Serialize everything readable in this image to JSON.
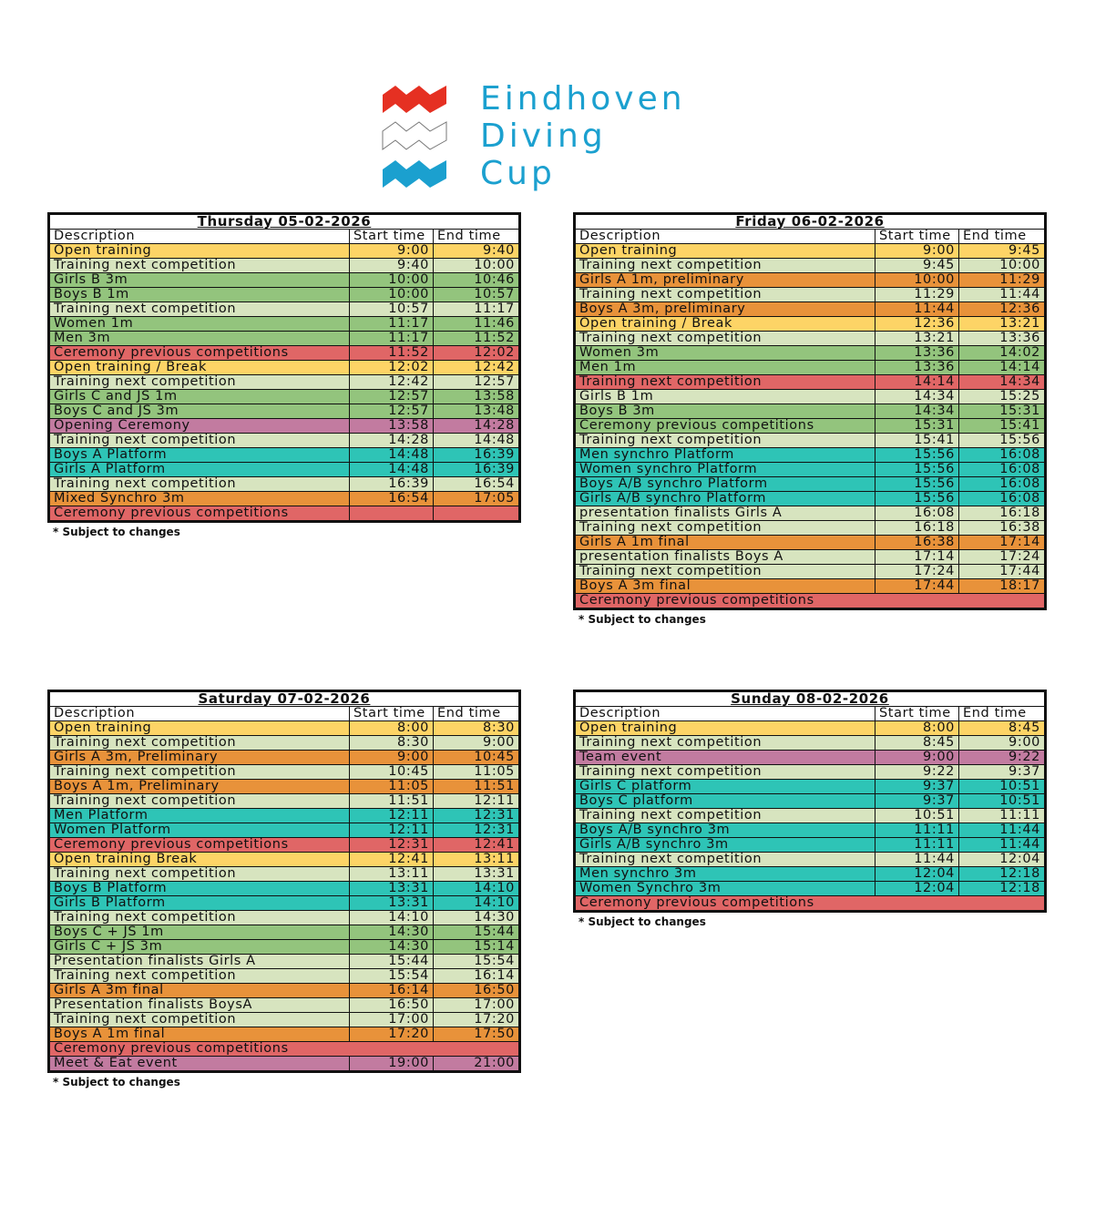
{
  "logo": {
    "lines": [
      "Eindhoven",
      "Diving",
      "Cup"
    ],
    "colors": {
      "top": "#e53022",
      "middle": "#ffffff",
      "bottom": "#1ba0cf",
      "text": "#1ba0cf"
    }
  },
  "colors": {
    "Y": "#fdd466",
    "L": "#d7e4bf",
    "G": "#93c47d",
    "R": "#e06666",
    "P": "#c27ba0",
    "T": "#2ec4b6",
    "O": "#e8923a"
  },
  "headers": {
    "description": "Description",
    "start": "Start time",
    "end": "End time"
  },
  "note": "* Subject to changes",
  "days": [
    {
      "title": "Thursday 05-02-2026",
      "rows": [
        [
          "Open training",
          "9:00",
          "9:40",
          "Y"
        ],
        [
          "Training next competition",
          "9:40",
          "10:00",
          "L"
        ],
        [
          "Girls B 3m",
          "10:00",
          "10:46",
          "G"
        ],
        [
          "Boys B 1m",
          "10:00",
          "10:57",
          "G"
        ],
        [
          "Training next competition",
          "10:57",
          "11:17",
          "L"
        ],
        [
          "Women 1m",
          "11:17",
          "11:46",
          "G"
        ],
        [
          "Men 3m",
          "11:17",
          "11:52",
          "G"
        ],
        [
          "Ceremony previous competitions",
          "11:52",
          "12:02",
          "R"
        ],
        [
          "Open training / Break",
          "12:02",
          "12:42",
          "Y"
        ],
        [
          "Training next competition",
          "12:42",
          "12:57",
          "L"
        ],
        [
          "Girls C and JS 1m",
          "12:57",
          "13:58",
          "G"
        ],
        [
          "Boys C and JS 3m",
          "12:57",
          "13:48",
          "G"
        ],
        [
          "Opening Ceremony",
          "13:58",
          "14:28",
          "P"
        ],
        [
          "Training next competition",
          "14:28",
          "14:48",
          "L"
        ],
        [
          "Boys A Platform",
          "14:48",
          "16:39",
          "T"
        ],
        [
          "Girls A Platform",
          "14:48",
          "16:39",
          "T"
        ],
        [
          "Training next competition",
          "16:39",
          "16:54",
          "L"
        ],
        [
          "Mixed Synchro 3m",
          "16:54",
          "17:05",
          "O"
        ],
        [
          "Ceremony previous competitions",
          "",
          "",
          "R"
        ]
      ]
    },
    {
      "title": "Friday 06-02-2026",
      "rows": [
        [
          "Open training",
          "9:00",
          "9:45",
          "Y"
        ],
        [
          "Training next competition",
          "9:45",
          "10:00",
          "L"
        ],
        [
          "Girls A 1m, preliminary",
          "10:00",
          "11:29",
          "O"
        ],
        [
          "Training next competition",
          "11:29",
          "11:44",
          "L"
        ],
        [
          "Boys A 3m, preliminary",
          "11:44",
          "12:36",
          "O"
        ],
        [
          "Open training / Break",
          "12:36",
          "13:21",
          "Y"
        ],
        [
          "Training next competition",
          "13:21",
          "13:36",
          "L"
        ],
        [
          "Women 3m",
          "13:36",
          "14:02",
          "G"
        ],
        [
          "Men 1m",
          "13:36",
          "14:14",
          "G"
        ],
        [
          "Training next competition",
          "14:14",
          "14:34",
          "R"
        ],
        [
          "Girls B 1m",
          "14:34",
          "15:25",
          "L"
        ],
        [
          "Boys B 3m",
          "14:34",
          "15:31",
          "G"
        ],
        [
          "Ceremony previous competitions",
          "15:31",
          "15:41",
          "G"
        ],
        [
          "Training next competition",
          "15:41",
          "15:56",
          "L"
        ],
        [
          "Men synchro Platform",
          "15:56",
          "16:08",
          "T"
        ],
        [
          "Women synchro Platform",
          "15:56",
          "16:08",
          "T"
        ],
        [
          "Boys A/B synchro Platform",
          "15:56",
          "16:08",
          "T"
        ],
        [
          "Girls A/B synchro Platform",
          "15:56",
          "16:08",
          "T"
        ],
        [
          "presentation finalists Girls A",
          "16:08",
          "16:18",
          "L"
        ],
        [
          "Training next competition",
          "16:18",
          "16:38",
          "L"
        ],
        [
          "Girls A 1m final",
          "16:38",
          "17:14",
          "O"
        ],
        [
          "presentation finalists Boys A",
          "17:14",
          "17:24",
          "L"
        ],
        [
          "Training next competition",
          "17:24",
          "17:44",
          "L"
        ],
        [
          "Boys A 3m final",
          "17:44",
          "18:17",
          "O"
        ],
        [
          "Ceremony previous competitions",
          null,
          null,
          "R"
        ]
      ]
    },
    {
      "title": "Saturday 07-02-2026",
      "rows": [
        [
          "Open training",
          "8:00",
          "8:30",
          "Y"
        ],
        [
          "Training next competition",
          "8:30",
          "9:00",
          "L"
        ],
        [
          "Girls A 3m, Preliminary",
          "9:00",
          "10:45",
          "O"
        ],
        [
          "Training next competition",
          "10:45",
          "11:05",
          "L"
        ],
        [
          "Boys A 1m, Preliminary",
          "11:05",
          "11:51",
          "O"
        ],
        [
          "Training next competition",
          "11:51",
          "12:11",
          "L"
        ],
        [
          "Men Platform",
          "12:11",
          "12:31",
          "T"
        ],
        [
          "Women Platform",
          "12:11",
          "12:31",
          "T"
        ],
        [
          "Ceremony previous competitions",
          "12:31",
          "12:41",
          "R"
        ],
        [
          "Open training Break",
          "12:41",
          "13:11",
          "Y"
        ],
        [
          "Training next competition",
          "13:11",
          "13:31",
          "L"
        ],
        [
          "Boys B Platform",
          "13:31",
          "14:10",
          "T"
        ],
        [
          "Girls B Platform",
          "13:31",
          "14:10",
          "T"
        ],
        [
          "Training next competition",
          "14:10",
          "14:30",
          "L"
        ],
        [
          "Boys C + JS 1m",
          "14:30",
          "15:44",
          "G"
        ],
        [
          "Girls C + JS 3m",
          "14:30",
          "15:14",
          "G"
        ],
        [
          "Presentation finalists Girls A",
          "15:44",
          "15:54",
          "L"
        ],
        [
          "Training next competition",
          "15:54",
          "16:14",
          "L"
        ],
        [
          "Girls A 3m final",
          "16:14",
          "16:50",
          "O"
        ],
        [
          "Presentation finalists BoysA",
          "16:50",
          "17:00",
          "L"
        ],
        [
          "Training next competition",
          "17:00",
          "17:20",
          "L"
        ],
        [
          "Boys A 1m final",
          "17:20",
          "17:50",
          "O"
        ],
        [
          "Ceremony previous competitions",
          null,
          null,
          "R"
        ],
        [
          "Meet & Eat event",
          "19:00",
          "21:00",
          "P"
        ]
      ]
    },
    {
      "title": "Sunday 08-02-2026",
      "rows": [
        [
          "Open training",
          "8:00",
          "8:45",
          "Y"
        ],
        [
          "Training next competition",
          "8:45",
          "9:00",
          "L"
        ],
        [
          "Team event",
          "9:00",
          "9:22",
          "P"
        ],
        [
          "Training next competition",
          "9:22",
          "9:37",
          "L"
        ],
        [
          "Girls C platform",
          "9:37",
          "10:51",
          "T"
        ],
        [
          "Boys C platform",
          "9:37",
          "10:51",
          "T"
        ],
        [
          "Training next competition",
          "10:51",
          "11:11",
          "L"
        ],
        [
          "Boys A/B synchro 3m",
          "11:11",
          "11:44",
          "T"
        ],
        [
          "Girls A/B synchro 3m",
          "11:11",
          "11:44",
          "T"
        ],
        [
          "Training next competition",
          "11:44",
          "12:04",
          "L"
        ],
        [
          "Men synchro 3m",
          "12:04",
          "12:18",
          "T"
        ],
        [
          "Women Synchro 3m",
          "12:04",
          "12:18",
          "T"
        ],
        [
          "Ceremony previous competitions",
          null,
          null,
          "R"
        ]
      ]
    }
  ]
}
